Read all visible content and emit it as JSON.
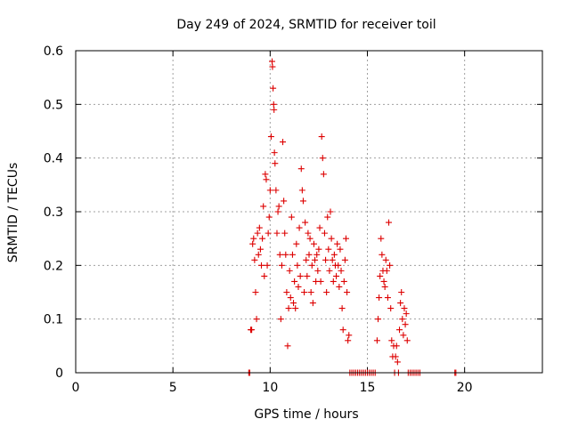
{
  "chart_data": {
    "type": "scatter",
    "title": "Day 249 of 2024, SRMTID for receiver toil",
    "xlabel": "GPS time / hours",
    "ylabel": "SRMTID / TECUs",
    "xlim": [
      0,
      24
    ],
    "ylim": [
      0,
      0.6
    ],
    "xticks": [
      0,
      5,
      10,
      15,
      20
    ],
    "yticks": [
      0,
      0.1,
      0.2,
      0.3,
      0.4,
      0.5,
      0.6
    ],
    "xtick_labels": [
      "0",
      "5",
      "10",
      "15",
      "20"
    ],
    "ytick_labels": [
      "0",
      "0.1",
      "0.2",
      "0.3",
      "0.4",
      "0.5",
      "0.6"
    ],
    "grid": true,
    "marker": "+",
    "color": "#dd0000",
    "series": [
      {
        "name": "SRMTID",
        "points": [
          [
            8.9,
            0.0
          ],
          [
            8.95,
            0.0
          ],
          [
            9.0,
            0.08
          ],
          [
            9.05,
            0.08
          ],
          [
            9.1,
            0.24
          ],
          [
            9.15,
            0.25
          ],
          [
            9.2,
            0.21
          ],
          [
            9.25,
            0.15
          ],
          [
            9.3,
            0.1
          ],
          [
            9.35,
            0.26
          ],
          [
            9.4,
            0.22
          ],
          [
            9.45,
            0.27
          ],
          [
            9.5,
            0.23
          ],
          [
            9.55,
            0.2
          ],
          [
            9.6,
            0.25
          ],
          [
            9.65,
            0.31
          ],
          [
            9.7,
            0.18
          ],
          [
            9.75,
            0.37
          ],
          [
            9.8,
            0.36
          ],
          [
            9.85,
            0.2
          ],
          [
            9.9,
            0.26
          ],
          [
            9.95,
            0.29
          ],
          [
            10.0,
            0.34
          ],
          [
            10.05,
            0.44
          ],
          [
            10.1,
            0.58
          ],
          [
            10.12,
            0.57
          ],
          [
            10.15,
            0.53
          ],
          [
            10.18,
            0.5
          ],
          [
            10.2,
            0.49
          ],
          [
            10.22,
            0.41
          ],
          [
            10.25,
            0.39
          ],
          [
            10.3,
            0.34
          ],
          [
            10.35,
            0.26
          ],
          [
            10.4,
            0.3
          ],
          [
            10.45,
            0.31
          ],
          [
            10.5,
            0.22
          ],
          [
            10.55,
            0.1
          ],
          [
            10.6,
            0.2
          ],
          [
            10.65,
            0.43
          ],
          [
            10.7,
            0.32
          ],
          [
            10.75,
            0.26
          ],
          [
            10.8,
            0.22
          ],
          [
            10.85,
            0.15
          ],
          [
            10.9,
            0.05
          ],
          [
            10.95,
            0.12
          ],
          [
            11.0,
            0.19
          ],
          [
            11.05,
            0.14
          ],
          [
            11.1,
            0.29
          ],
          [
            11.15,
            0.22
          ],
          [
            11.2,
            0.13
          ],
          [
            11.25,
            0.17
          ],
          [
            11.3,
            0.12
          ],
          [
            11.35,
            0.24
          ],
          [
            11.4,
            0.2
          ],
          [
            11.45,
            0.16
          ],
          [
            11.5,
            0.27
          ],
          [
            11.55,
            0.18
          ],
          [
            11.6,
            0.38
          ],
          [
            11.65,
            0.34
          ],
          [
            11.7,
            0.32
          ],
          [
            11.75,
            0.15
          ],
          [
            11.8,
            0.28
          ],
          [
            11.85,
            0.21
          ],
          [
            11.9,
            0.18
          ],
          [
            11.95,
            0.26
          ],
          [
            12.0,
            0.22
          ],
          [
            12.05,
            0.25
          ],
          [
            12.1,
            0.15
          ],
          [
            12.15,
            0.2
          ],
          [
            12.2,
            0.13
          ],
          [
            12.25,
            0.24
          ],
          [
            12.3,
            0.21
          ],
          [
            12.35,
            0.17
          ],
          [
            12.4,
            0.22
          ],
          [
            12.45,
            0.19
          ],
          [
            12.5,
            0.23
          ],
          [
            12.55,
            0.27
          ],
          [
            12.6,
            0.17
          ],
          [
            12.65,
            0.44
          ],
          [
            12.7,
            0.4
          ],
          [
            12.75,
            0.37
          ],
          [
            12.8,
            0.26
          ],
          [
            12.85,
            0.21
          ],
          [
            12.9,
            0.15
          ],
          [
            12.95,
            0.29
          ],
          [
            13.0,
            0.23
          ],
          [
            13.05,
            0.19
          ],
          [
            13.1,
            0.3
          ],
          [
            13.15,
            0.25
          ],
          [
            13.2,
            0.21
          ],
          [
            13.25,
            0.17
          ],
          [
            13.3,
            0.22
          ],
          [
            13.35,
            0.2
          ],
          [
            13.4,
            0.18
          ],
          [
            13.45,
            0.24
          ],
          [
            13.5,
            0.2
          ],
          [
            13.55,
            0.16
          ],
          [
            13.6,
            0.23
          ],
          [
            13.65,
            0.19
          ],
          [
            13.7,
            0.12
          ],
          [
            13.75,
            0.08
          ],
          [
            13.8,
            0.17
          ],
          [
            13.85,
            0.21
          ],
          [
            13.9,
            0.25
          ],
          [
            13.95,
            0.15
          ],
          [
            14.0,
            0.06
          ],
          [
            14.05,
            0.07
          ],
          [
            14.1,
            0.0
          ],
          [
            14.2,
            0.0
          ],
          [
            14.3,
            0.0
          ],
          [
            14.4,
            0.0
          ],
          [
            14.5,
            0.0
          ],
          [
            14.6,
            0.0
          ],
          [
            14.7,
            0.0
          ],
          [
            14.8,
            0.0
          ],
          [
            14.9,
            0.0
          ],
          [
            15.0,
            0.0
          ],
          [
            15.1,
            0.0
          ],
          [
            15.2,
            0.0
          ],
          [
            15.3,
            0.0
          ],
          [
            15.4,
            0.0
          ],
          [
            15.5,
            0.06
          ],
          [
            15.55,
            0.1
          ],
          [
            15.6,
            0.14
          ],
          [
            15.65,
            0.18
          ],
          [
            15.7,
            0.25
          ],
          [
            15.75,
            0.22
          ],
          [
            15.8,
            0.19
          ],
          [
            15.85,
            0.17
          ],
          [
            15.9,
            0.16
          ],
          [
            15.95,
            0.21
          ],
          [
            16.0,
            0.19
          ],
          [
            16.05,
            0.14
          ],
          [
            16.1,
            0.28
          ],
          [
            16.15,
            0.2
          ],
          [
            16.2,
            0.12
          ],
          [
            16.25,
            0.06
          ],
          [
            16.3,
            0.03
          ],
          [
            16.35,
            0.05
          ],
          [
            16.4,
            0.0
          ],
          [
            16.45,
            0.03
          ],
          [
            16.5,
            0.05
          ],
          [
            16.55,
            0.02
          ],
          [
            16.6,
            0.0
          ],
          [
            16.65,
            0.08
          ],
          [
            16.7,
            0.13
          ],
          [
            16.75,
            0.15
          ],
          [
            16.8,
            0.1
          ],
          [
            16.85,
            0.07
          ],
          [
            16.9,
            0.12
          ],
          [
            16.95,
            0.09
          ],
          [
            17.0,
            0.11
          ],
          [
            17.05,
            0.06
          ],
          [
            17.1,
            0.0
          ],
          [
            17.2,
            0.0
          ],
          [
            17.3,
            0.0
          ],
          [
            17.4,
            0.0
          ],
          [
            17.5,
            0.0
          ],
          [
            17.6,
            0.0
          ],
          [
            17.7,
            0.0
          ],
          [
            19.5,
            0.0
          ],
          [
            19.55,
            0.0
          ]
        ]
      }
    ]
  }
}
